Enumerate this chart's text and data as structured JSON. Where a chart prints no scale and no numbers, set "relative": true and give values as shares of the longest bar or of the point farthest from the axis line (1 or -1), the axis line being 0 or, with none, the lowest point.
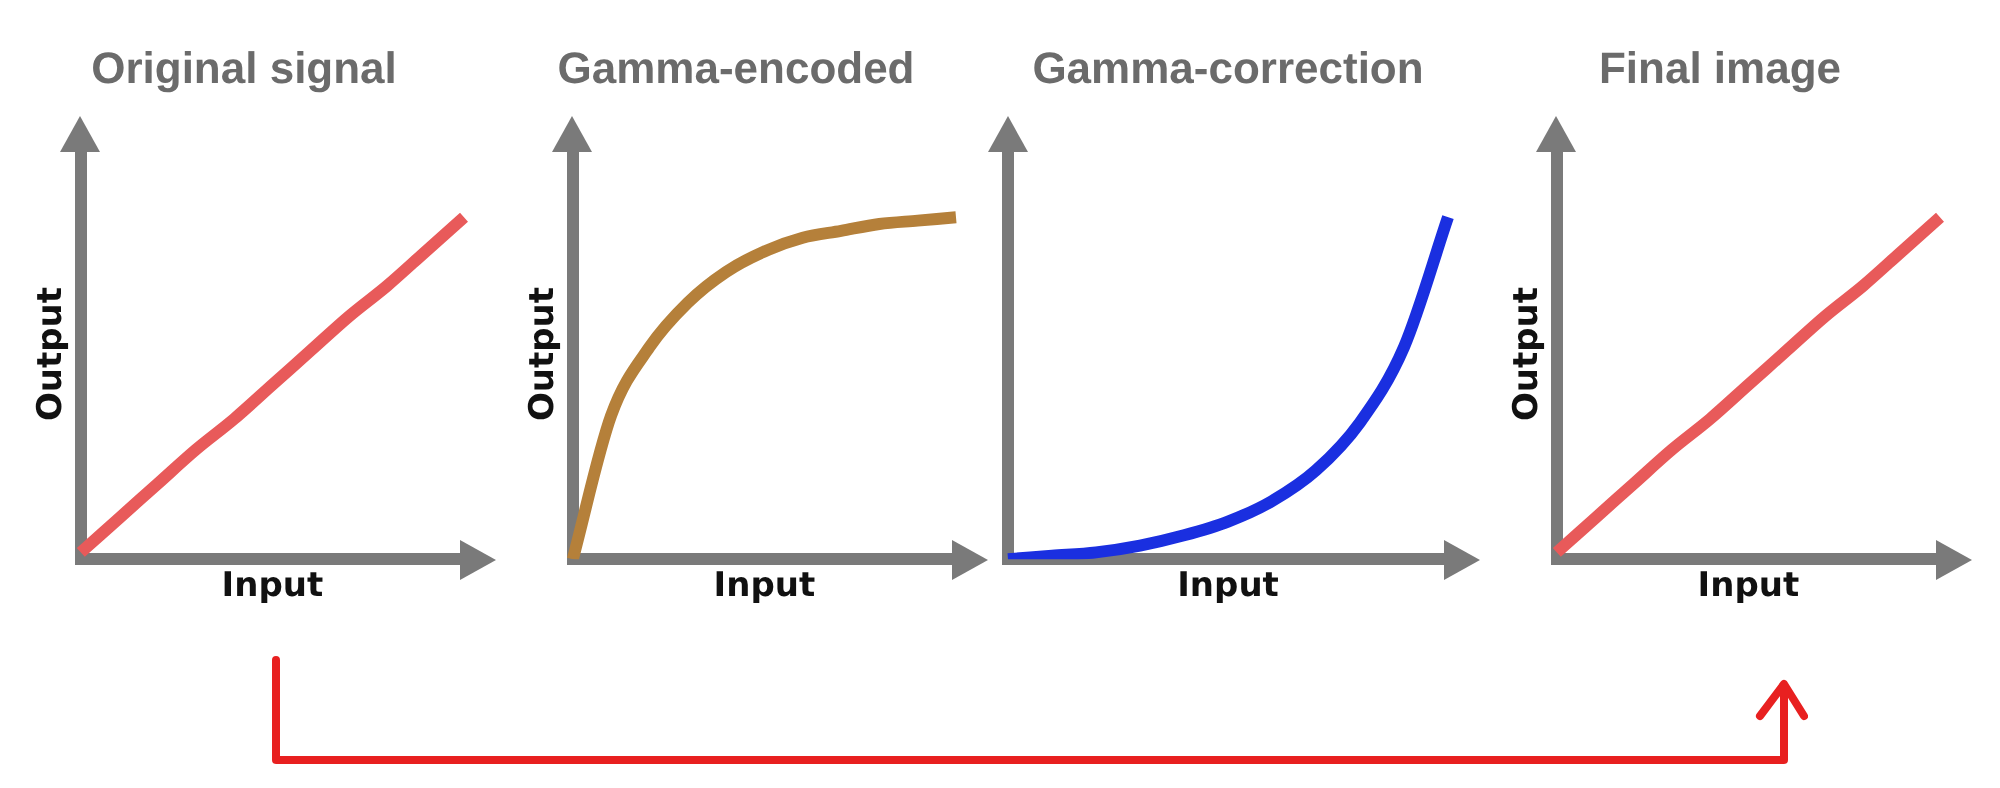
{
  "chart_data": [
    {
      "type": "line",
      "title": "Original signal",
      "xlabel": "Input",
      "ylabel": "Output",
      "relative": true,
      "tick_labels": false,
      "legend": false,
      "grid": false,
      "categories": [
        null,
        null,
        null,
        null,
        null,
        null,
        null,
        null,
        null,
        null,
        null
      ],
      "series": [
        {
          "color": "#e85a5a",
          "values": [
            0.02,
            0.12,
            0.22,
            0.32,
            0.41,
            0.51,
            0.61,
            0.71,
            0.8,
            0.9,
            1
          ]
        }
      ]
    },
    {
      "type": "line",
      "title": "Gamma-encoded",
      "xlabel": "Input",
      "ylabel": "Output",
      "relative": true,
      "tick_labels": false,
      "legend": false,
      "grid": false,
      "categories": [
        null,
        null,
        null,
        null,
        null,
        null,
        null,
        null,
        null,
        null,
        null
      ],
      "series": [
        {
          "color": "#b5803a",
          "values": [
            0,
            0.42,
            0.62,
            0.75,
            0.84,
            0.9,
            0.94,
            0.96,
            0.98,
            0.99,
            1
          ]
        }
      ]
    },
    {
      "type": "line",
      "title": "Gamma-correction",
      "xlabel": "Input",
      "relative": true,
      "tick_labels": false,
      "legend": false,
      "grid": false,
      "categories": [
        null,
        null,
        null,
        null,
        null,
        null,
        null,
        null,
        null,
        null,
        null
      ],
      "series": [
        {
          "color": "#1a2fe0",
          "values": [
            0,
            0.01,
            0.02,
            0.04,
            0.07,
            0.11,
            0.17,
            0.26,
            0.4,
            0.62,
            1
          ]
        }
      ]
    },
    {
      "type": "line",
      "title": "Final image",
      "xlabel": "Input",
      "ylabel": "Output",
      "relative": true,
      "tick_labels": false,
      "legend": false,
      "grid": false,
      "categories": [
        null,
        null,
        null,
        null,
        null,
        null,
        null,
        null,
        null,
        null,
        null
      ],
      "series": [
        {
          "color": "#e85a5a",
          "values": [
            0.02,
            0.12,
            0.22,
            0.32,
            0.41,
            0.51,
            0.61,
            0.71,
            0.8,
            0.9,
            1
          ]
        }
      ]
    }
  ]
}
